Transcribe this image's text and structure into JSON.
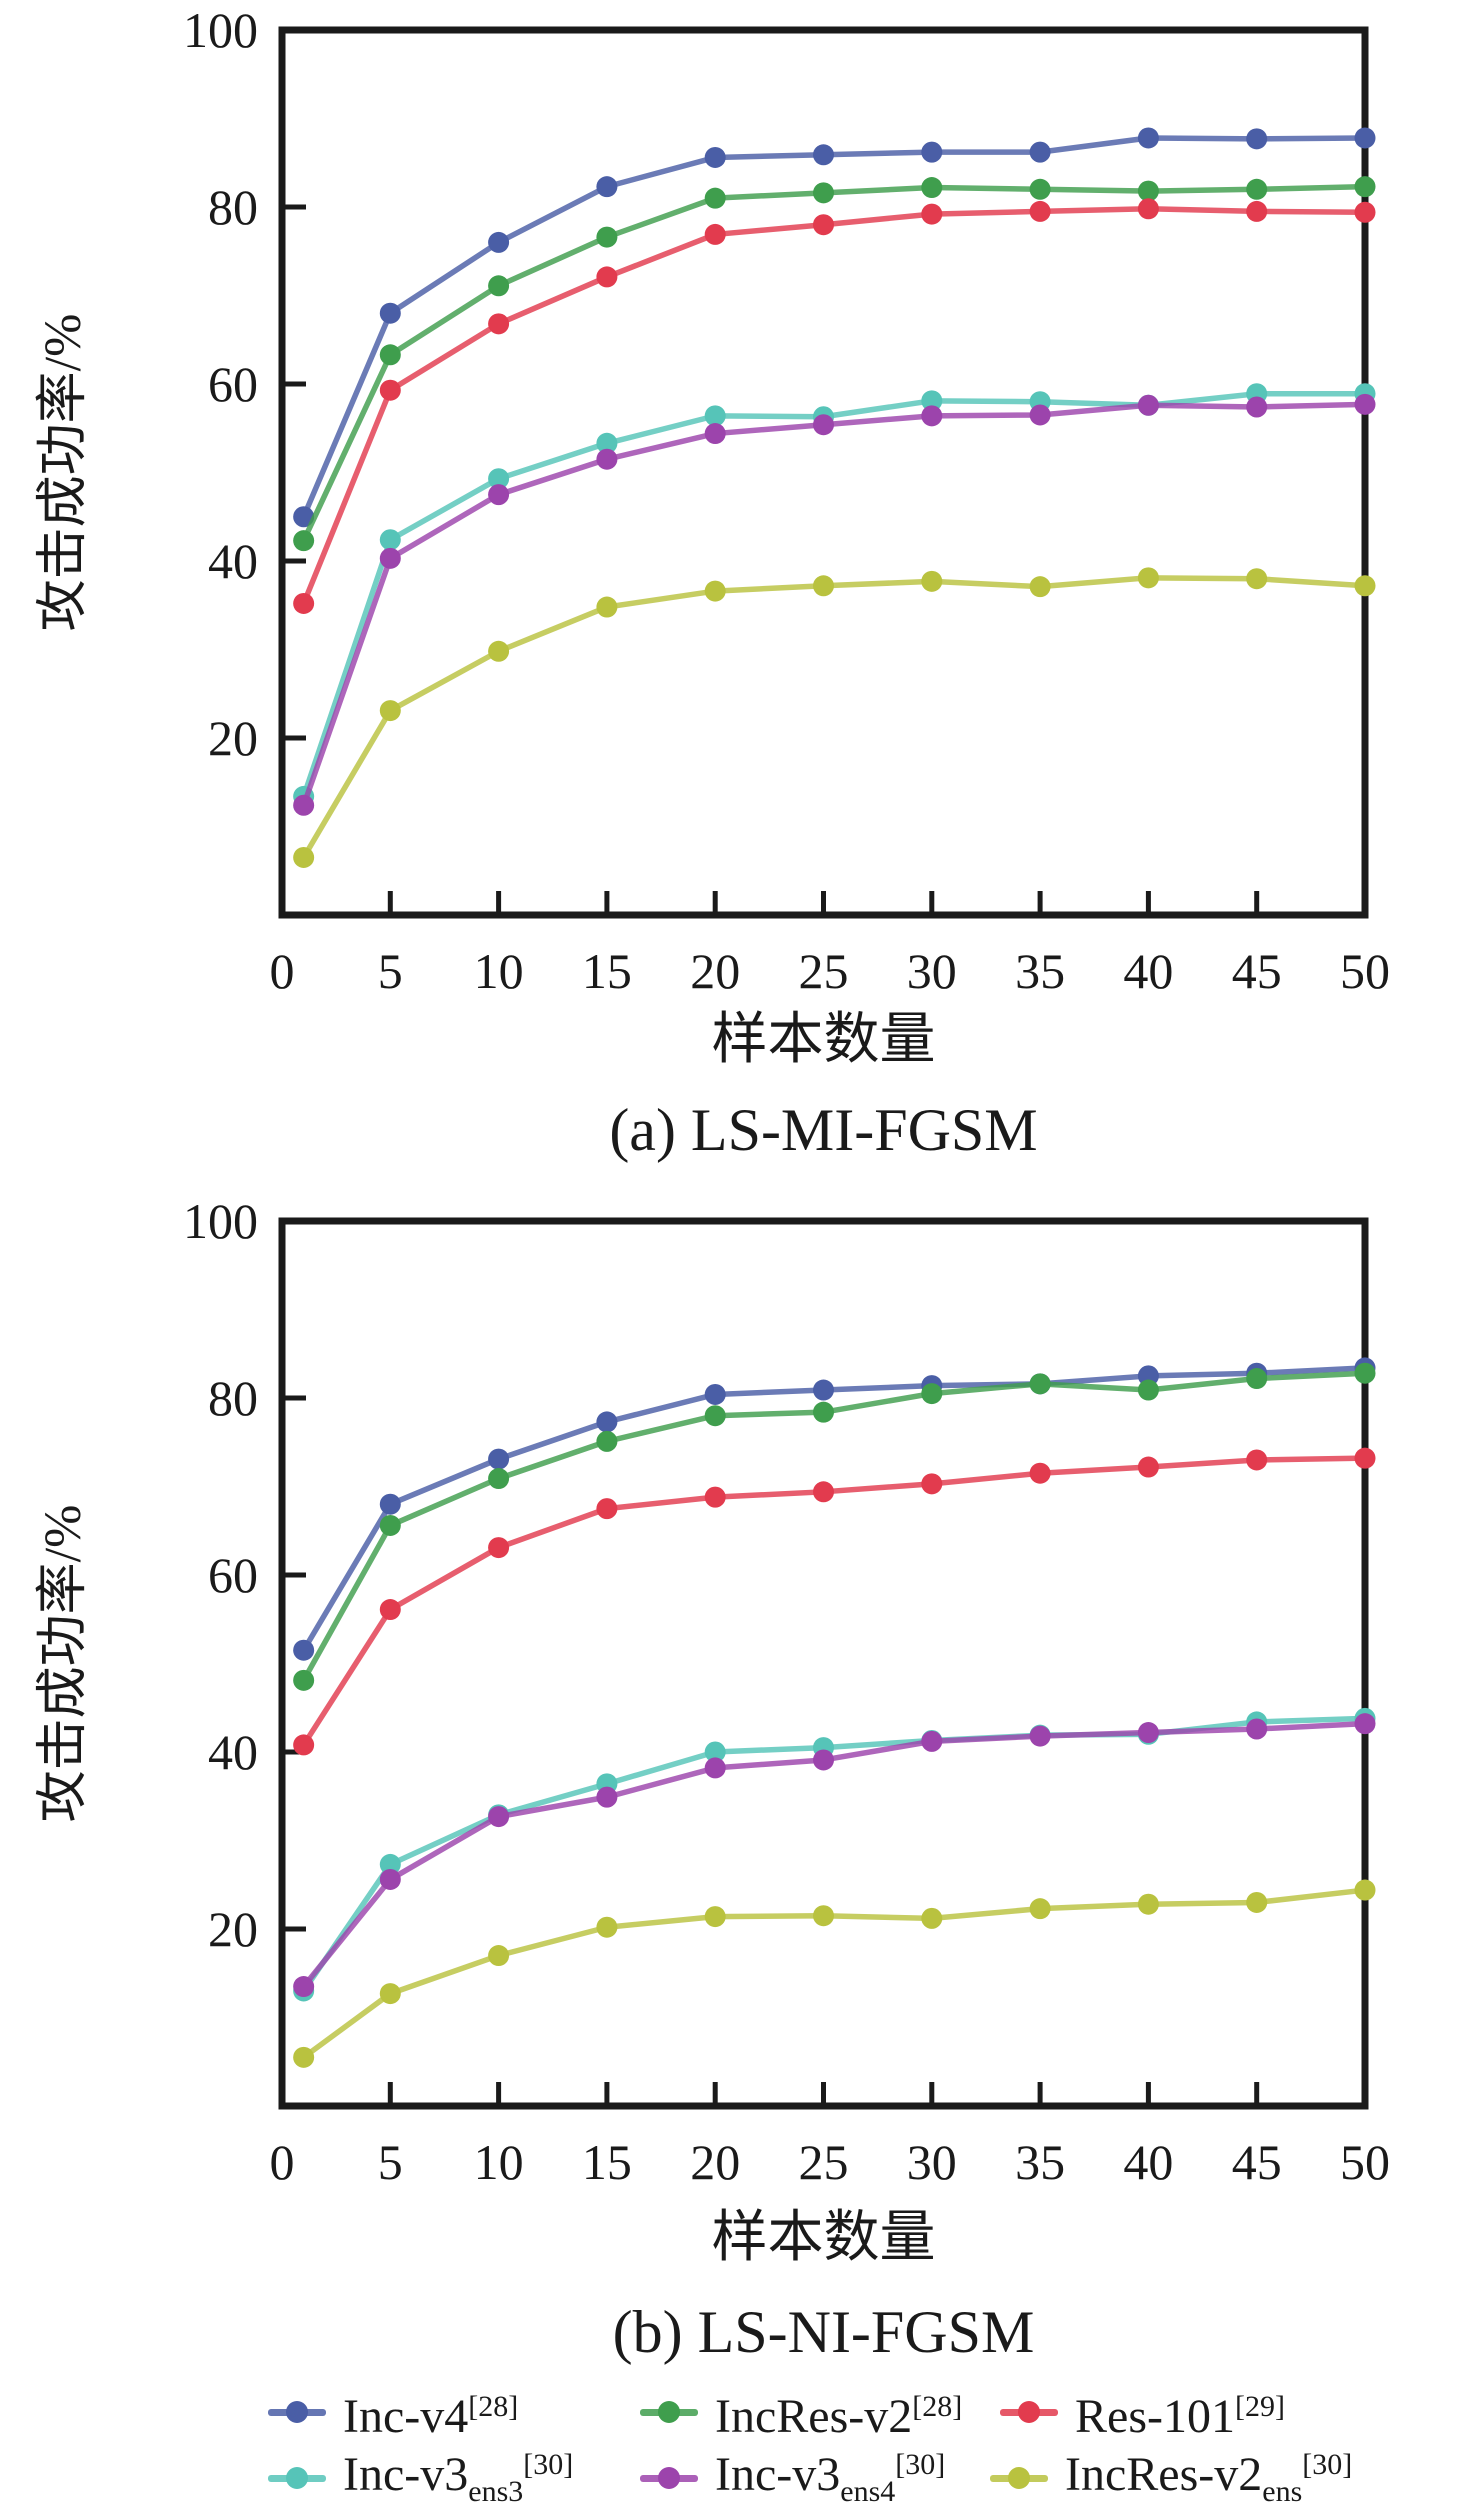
{
  "colors": {
    "blue": "#4a5ea6",
    "green": "#3f9e4d",
    "red": "#e23b4e",
    "cyan": "#56c4b8",
    "purple": "#9c44ac",
    "yellow": "#b9c23f",
    "axis": "#1a1a1a"
  },
  "legend": {
    "items": [
      {
        "name": "Inc-v4",
        "sub": "",
        "sup": "[28]",
        "color": "blue"
      },
      {
        "name": "IncRes-v2",
        "sub": "",
        "sup": "[28]",
        "color": "green"
      },
      {
        "name": "Res-101",
        "sub": "",
        "sup": "[29]",
        "color": "red"
      },
      {
        "name": "Inc-v3",
        "sub": "ens3",
        "sup": "[30]",
        "color": "cyan"
      },
      {
        "name": "Inc-v3",
        "sub": "ens4",
        "sup": "[30]",
        "color": "purple"
      },
      {
        "name": "IncRes-v2",
        "sub": "ens",
        "sup": "[30]",
        "color": "yellow"
      }
    ]
  },
  "chart_data": [
    {
      "type": "line",
      "subtitle": "(a) LS-MI-FGSM",
      "xlabel": "样本数量",
      "ylabel": "攻击成功率/%",
      "xlim": [
        0,
        50
      ],
      "ylim": [
        0,
        100
      ],
      "grid": false,
      "x_ticks": [
        0,
        5,
        10,
        15,
        20,
        25,
        30,
        35,
        40,
        45,
        50
      ],
      "y_ticks": [
        20,
        40,
        60,
        80,
        100
      ],
      "x": [
        1,
        5,
        10,
        15,
        20,
        25,
        30,
        35,
        40,
        45,
        50
      ],
      "series": [
        {
          "name": "Inc-v4",
          "color": "blue",
          "values": [
            45.0,
            68.0,
            76.0,
            82.3,
            85.6,
            85.9,
            86.2,
            86.2,
            87.8,
            87.7,
            87.8
          ]
        },
        {
          "name": "IncRes-v2",
          "color": "green",
          "values": [
            42.3,
            63.3,
            71.1,
            76.6,
            81.0,
            81.6,
            82.2,
            82.0,
            81.8,
            82.0,
            82.3
          ]
        },
        {
          "name": "Res-101",
          "color": "red",
          "values": [
            35.2,
            59.3,
            66.8,
            72.1,
            76.9,
            78.0,
            79.2,
            79.5,
            79.8,
            79.5,
            79.4
          ]
        },
        {
          "name": "Inc-v3ens3",
          "color": "cyan",
          "values": [
            13.4,
            42.4,
            49.3,
            53.3,
            56.4,
            56.3,
            58.1,
            58.0,
            57.6,
            58.9,
            58.9
          ]
        },
        {
          "name": "Inc-v3ens4",
          "color": "purple",
          "values": [
            12.4,
            40.3,
            47.5,
            51.5,
            54.4,
            55.4,
            56.4,
            56.5,
            57.6,
            57.4,
            57.7
          ]
        },
        {
          "name": "IncRes-v2ens",
          "color": "yellow",
          "values": [
            6.5,
            23.1,
            29.8,
            34.8,
            36.6,
            37.2,
            37.7,
            37.1,
            38.1,
            38.0,
            37.2
          ]
        }
      ]
    },
    {
      "type": "line",
      "subtitle": "(b) LS-NI-FGSM",
      "xlabel": "样本数量",
      "ylabel": "攻击成功率/%",
      "xlim": [
        0,
        50
      ],
      "ylim": [
        0,
        100
      ],
      "grid": false,
      "x_ticks": [
        0,
        5,
        10,
        15,
        20,
        25,
        30,
        35,
        40,
        45,
        50
      ],
      "y_ticks": [
        20,
        40,
        60,
        80,
        100
      ],
      "x": [
        1,
        5,
        10,
        15,
        20,
        25,
        30,
        35,
        40,
        45,
        50
      ],
      "series": [
        {
          "name": "Inc-v4",
          "color": "blue",
          "values": [
            51.5,
            68.0,
            73.1,
            77.3,
            80.4,
            80.9,
            81.4,
            81.6,
            82.5,
            82.8,
            83.4
          ]
        },
        {
          "name": "IncRes-v2",
          "color": "green",
          "values": [
            48.1,
            65.6,
            70.9,
            75.1,
            78.0,
            78.4,
            80.5,
            81.6,
            80.9,
            82.2,
            82.8
          ]
        },
        {
          "name": "Res-101",
          "color": "red",
          "values": [
            40.8,
            56.1,
            63.1,
            67.5,
            68.8,
            69.4,
            70.3,
            71.5,
            72.2,
            73.0,
            73.2
          ]
        },
        {
          "name": "Inc-v3ens3",
          "color": "cyan",
          "values": [
            13.0,
            27.3,
            32.9,
            36.4,
            40.0,
            40.5,
            41.3,
            41.9,
            42.0,
            43.4,
            43.8
          ]
        },
        {
          "name": "Inc-v3ens4",
          "color": "purple",
          "values": [
            13.5,
            25.6,
            32.7,
            34.9,
            38.2,
            39.1,
            41.2,
            41.8,
            42.2,
            42.6,
            43.2
          ]
        },
        {
          "name": "IncRes-v2ens",
          "color": "yellow",
          "values": [
            5.5,
            12.7,
            17.0,
            20.2,
            21.4,
            21.5,
            21.2,
            22.3,
            22.8,
            23.0,
            24.4
          ]
        }
      ]
    }
  ]
}
